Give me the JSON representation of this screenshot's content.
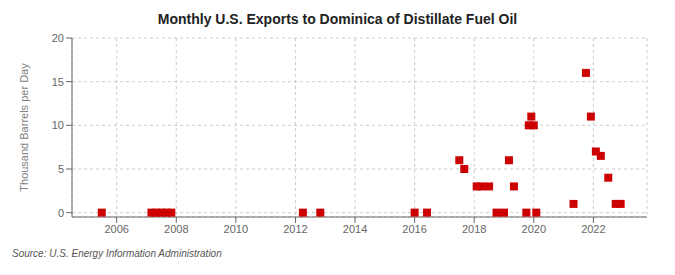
{
  "chart_data": {
    "type": "scatter",
    "title": "Monthly U.S. Exports to Dominica of Distillate Fuel Oil",
    "ylabel": "Thousand Barrels per Day",
    "annotations": [
      "Source: U.S. Energy Information Administration"
    ],
    "color": "#cc0000",
    "marker": "square",
    "grid": true,
    "xlim": [
      2004.5,
      2023.8
    ],
    "xticks": [
      2006,
      2008,
      2010,
      2012,
      2014,
      2016,
      2018,
      2020,
      2022
    ],
    "ylim": [
      -0.5,
      20
    ],
    "yticks": [
      0,
      5,
      10,
      15,
      20
    ],
    "x": [
      2005.5,
      2007.1666666666667,
      2007.3333333333333,
      2007.5,
      2007.6666666666667,
      2007.8333333333333,
      2012.25,
      2012.8333333333333,
      2016.0,
      2016.4166666666667,
      2017.5,
      2017.6666666666667,
      2018.0833333333333,
      2018.25,
      2018.5,
      2018.75,
      2019.0,
      2019.1666666666667,
      2019.3333333333333,
      2019.75,
      2019.8333333333333,
      2019.9166666666667,
      2020.0,
      2020.0833333333333,
      2021.3333333333333,
      2021.75,
      2021.9166666666667,
      2022.0833333333333,
      2022.25,
      2022.5,
      2022.75,
      2022.9166666666667
    ],
    "values": [
      0.0,
      0.0,
      0.0,
      0.0,
      0.0,
      0.0,
      0.0,
      0.0,
      0.0,
      0.0,
      6.0,
      5.0,
      3.0,
      3.0,
      3.0,
      0.0,
      0.0,
      6.0,
      3.0,
      0.0,
      10.0,
      11.0,
      10.0,
      0.0,
      1.0,
      16.0,
      11.0,
      7.0,
      6.5,
      4.0,
      1.0,
      1.0
    ]
  }
}
